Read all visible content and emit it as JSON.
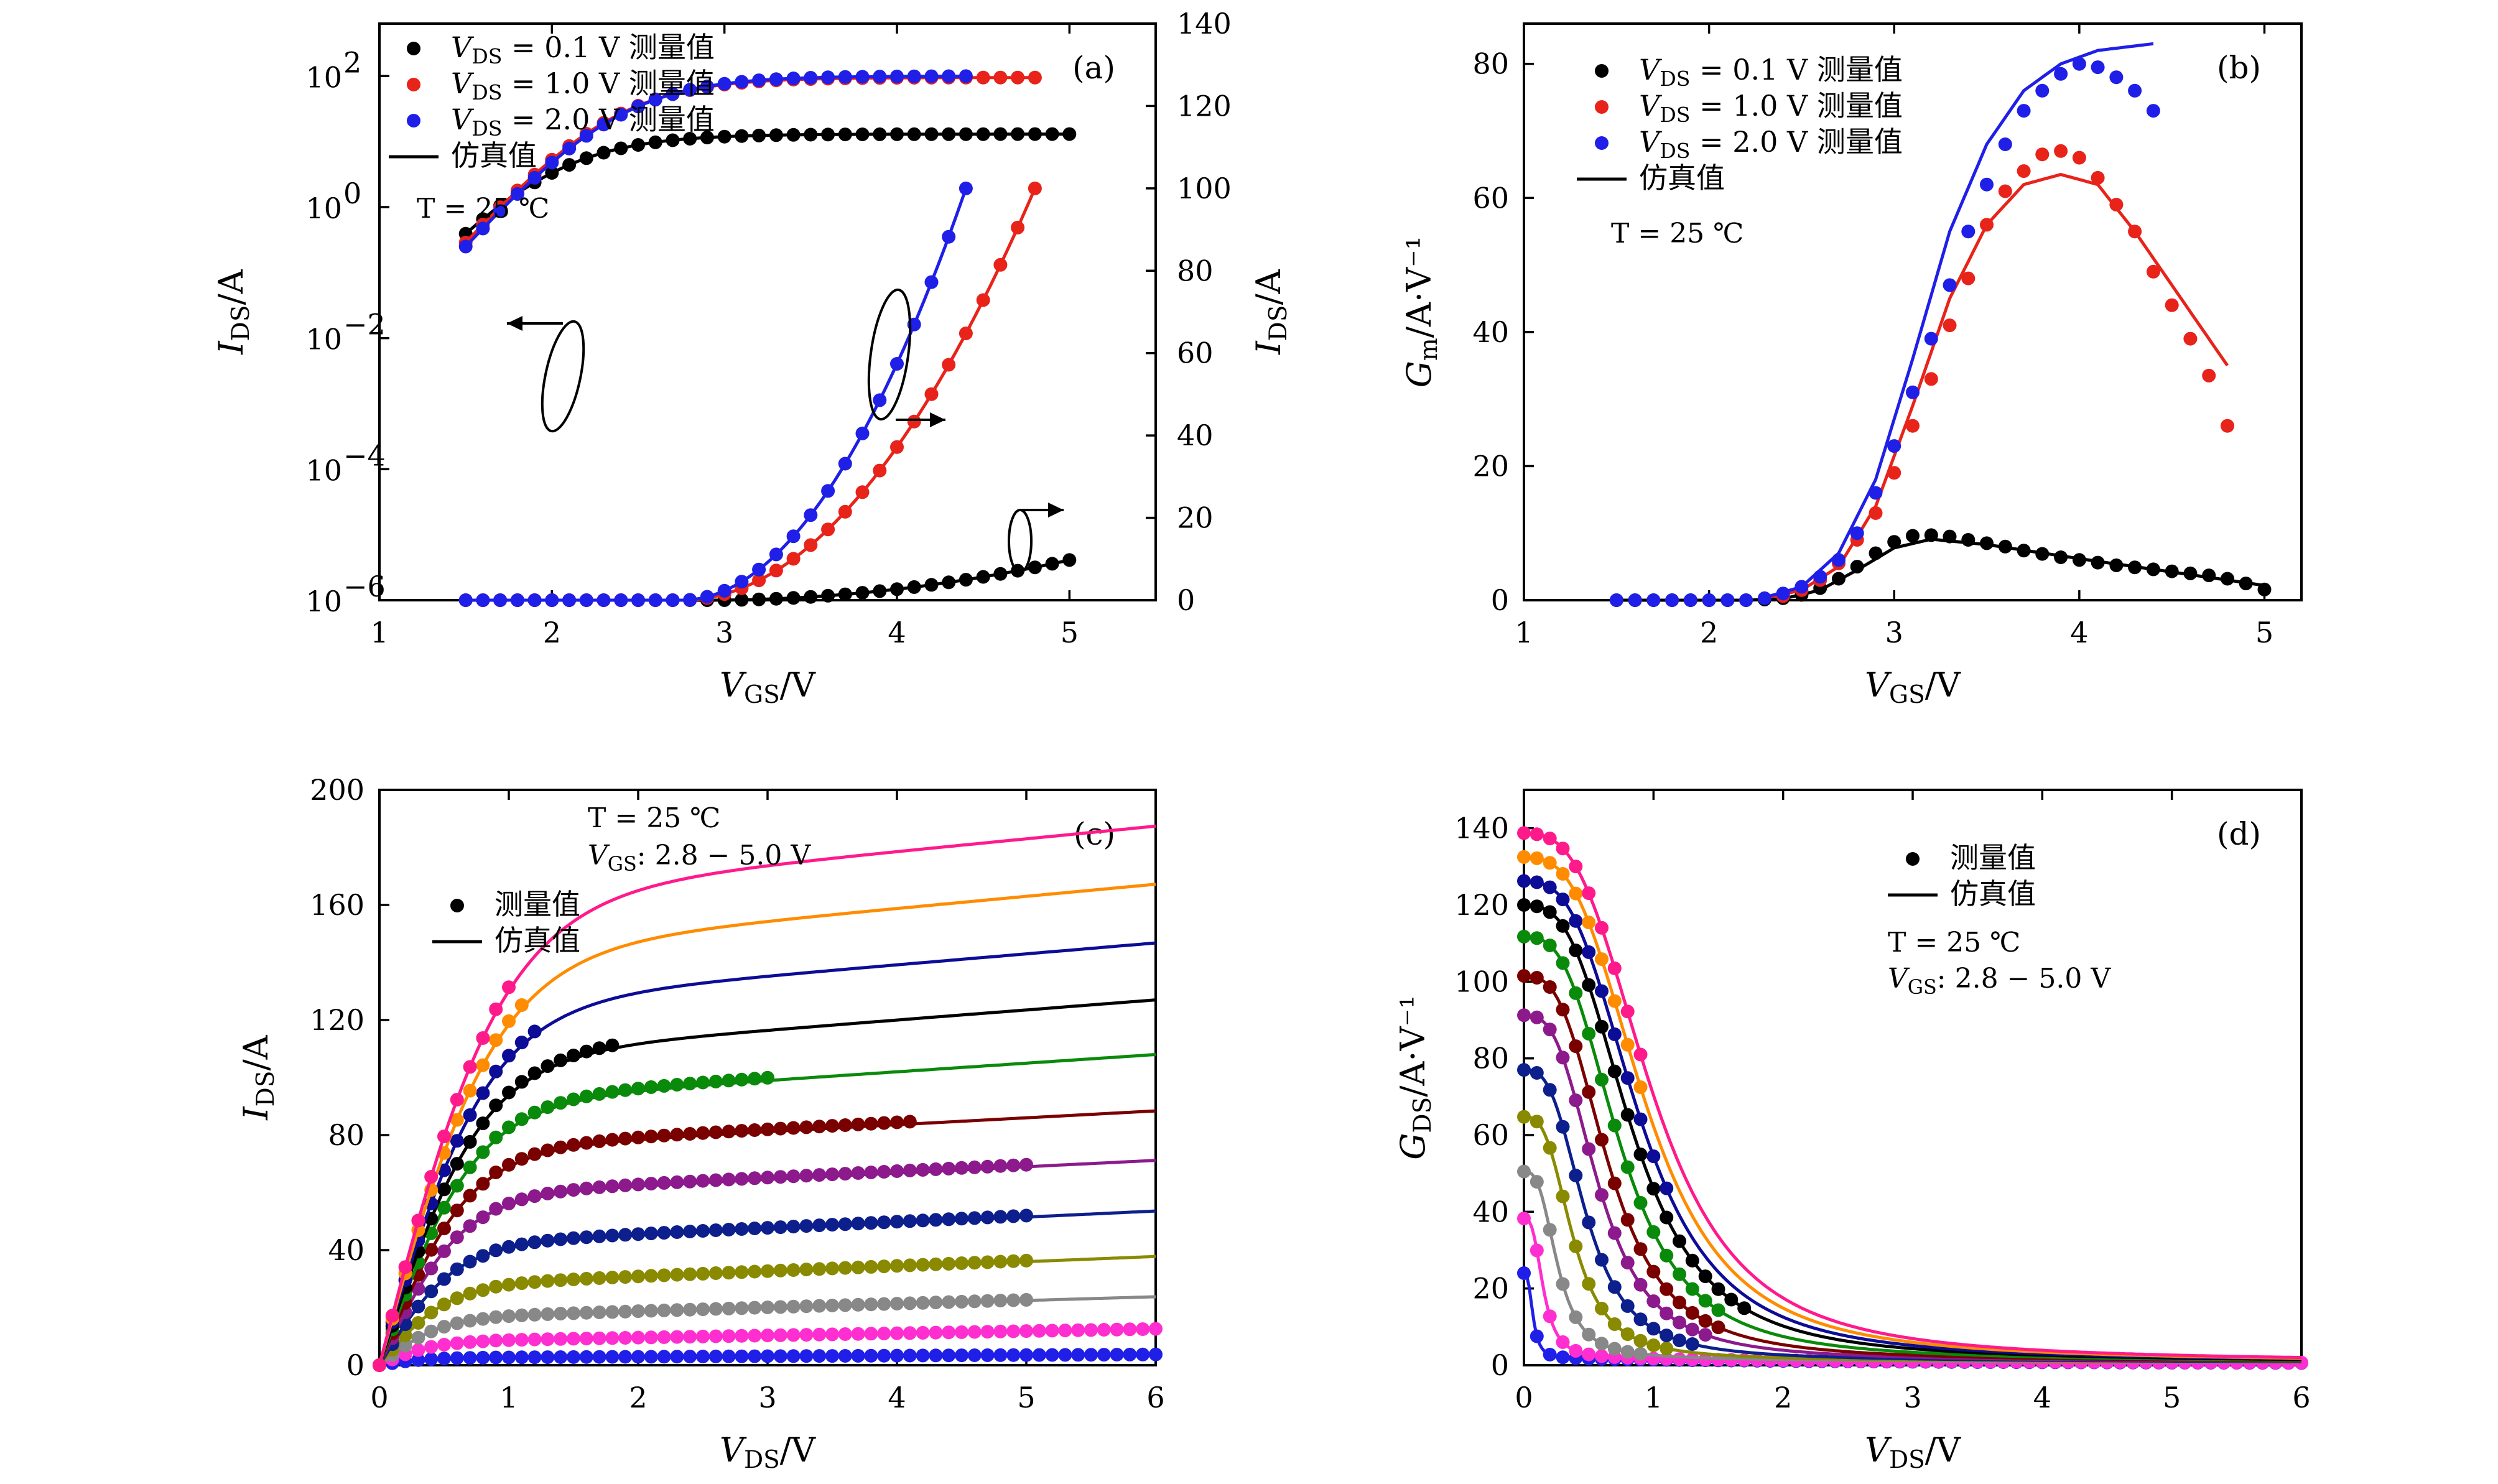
{
  "chart_data": [
    {
      "id": "a",
      "type": "scatter",
      "panel_label": "(a)",
      "xlabel": "V_GS/V",
      "ylabel": "I_DS/A",
      "y2label": "I_DS/A",
      "xlim": [
        1,
        5.5
      ],
      "x_ticks": [
        "1",
        "2",
        "3",
        "4",
        "5"
      ],
      "ylim_log": [
        -6,
        2.8
      ],
      "y_ticks_log": [
        {
          "base": "10",
          "exp": "2"
        },
        {
          "base": "10",
          "exp": "0"
        },
        {
          "base": "10",
          "exp": "−2"
        },
        {
          "base": "10",
          "exp": "−4"
        },
        {
          "base": "10",
          "exp": "−6"
        }
      ],
      "y2lim": [
        0,
        140
      ],
      "y2_ticks": [
        "0",
        "20",
        "40",
        "60",
        "80",
        "100",
        "120",
        "140"
      ],
      "annotation": {
        "text": "T = 25 ℃"
      },
      "legend": [
        {
          "text": "V_DS = 0.1 V 测量值",
          "color": "#000000",
          "marker": "dot"
        },
        {
          "text": "V_DS = 1.0 V 测量值",
          "color": "#e8231a",
          "marker": "dot"
        },
        {
          "text": "V_DS = 2.0 V 测量值",
          "color": "#1f1fe8",
          "marker": "dot"
        },
        {
          "text": "仿真值",
          "color": "#000000",
          "marker": "line"
        }
      ],
      "series": [
        {
          "name": "V_DS = 0.1 V 测量值",
          "color": "#000000",
          "vmax": 5.0,
          "log_params": {
            "vt": 1.95,
            "ss": 0.33,
            "isat": 13
          },
          "lin_params": {
            "scale": 13,
            "vt": 2.9
          }
        },
        {
          "name": "V_DS = 1.0 V 测量值",
          "color": "#e8231a",
          "vmax": 4.8,
          "log_params": {
            "vt": 2.32,
            "ss": 0.32,
            "isat": 95
          },
          "lin_params": {
            "scale": 100,
            "vt": 2.75
          }
        },
        {
          "name": "V_DS = 2.0 V 测量值",
          "color": "#1f1fe8",
          "vmax": 4.4,
          "log_params": {
            "vt": 2.35,
            "ss": 0.32,
            "isat": 100
          },
          "lin_params": {
            "scale": 100,
            "vt": 2.75
          }
        }
      ]
    },
    {
      "id": "b",
      "type": "scatter",
      "panel_label": "(b)",
      "xlabel": "V_GS/V",
      "ylabel": "G_m/A·V⁻¹",
      "xlim": [
        1,
        5.2
      ],
      "x_ticks": [
        "1",
        "2",
        "3",
        "4",
        "5"
      ],
      "ylim": [
        0,
        86
      ],
      "y_ticks": [
        "0",
        "20",
        "40",
        "60",
        "80"
      ],
      "annotation": {
        "text": "T = 25 ℃"
      },
      "legend": [
        {
          "text": "V_DS = 0.1 V 测量值",
          "color": "#000000",
          "marker": "dot"
        },
        {
          "text": "V_DS = 1.0 V 测量值",
          "color": "#e8231a",
          "marker": "dot"
        },
        {
          "text": "V_DS = 2.0 V 测量值",
          "color": "#1f1fe8",
          "marker": "dot"
        },
        {
          "text": "仿真值",
          "color": "#000000",
          "marker": "line"
        }
      ],
      "series": [
        {
          "name": "V_DS = 0.1 V 测量值",
          "color": "#000000",
          "x": [
            1.5,
            1.6,
            1.7,
            1.8,
            1.9,
            2.0,
            2.1,
            2.2,
            2.3,
            2.4,
            2.5,
            2.6,
            2.7,
            2.8,
            2.9,
            3.0,
            3.1,
            3.2,
            3.3,
            3.4,
            3.5,
            3.6,
            3.7,
            3.8,
            3.9,
            4.0,
            4.1,
            4.2,
            4.3,
            4.4,
            4.5,
            4.6,
            4.7,
            4.8,
            4.9,
            5.0
          ],
          "y": [
            0,
            0,
            0,
            0,
            0,
            0,
            0,
            0,
            0.1,
            0.3,
            0.8,
            1.8,
            3.2,
            5,
            7,
            8.7,
            9.6,
            9.7,
            9.5,
            9,
            8.5,
            8,
            7.4,
            6.9,
            6.4,
            6,
            5.6,
            5.2,
            4.9,
            4.6,
            4.3,
            4,
            3.7,
            3.2,
            2.5,
            1.6
          ],
          "fit_x": [
            1.5,
            2.2,
            2.4,
            2.6,
            2.8,
            3.0,
            3.2,
            3.5,
            4.0,
            4.5,
            5.0
          ],
          "fit_y": [
            0,
            0,
            0.2,
            1.5,
            4.5,
            7.8,
            9.1,
            8.3,
            6.2,
            4.2,
            2.2
          ]
        },
        {
          "name": "V_DS = 1.0 V 测量值",
          "color": "#e8231a",
          "x": [
            2.4,
            2.5,
            2.6,
            2.7,
            2.8,
            2.9,
            3.0,
            3.1,
            3.2,
            3.3,
            3.4,
            3.5,
            3.6,
            3.7,
            3.8,
            3.9,
            4.0,
            4.1,
            4.2,
            4.3,
            4.4,
            4.5,
            4.6,
            4.7,
            4.8
          ],
          "y": [
            0.6,
            1.5,
            3,
            5.5,
            9,
            13,
            19,
            26,
            33,
            41,
            48,
            56,
            61,
            64,
            66.5,
            67,
            66,
            63,
            59,
            55,
            49,
            44,
            39,
            33.5,
            26
          ],
          "fit_x": [
            2.3,
            2.5,
            2.7,
            2.9,
            3.1,
            3.3,
            3.5,
            3.7,
            3.9,
            4.1,
            4.3,
            4.5,
            4.8
          ],
          "fit_y": [
            0.3,
            1.5,
            5,
            14,
            29,
            45,
            56,
            62,
            63.5,
            62,
            55,
            47,
            35
          ]
        },
        {
          "name": "V_DS = 2.0 V 测量值",
          "color": "#1f1fe8",
          "x": [
            1.5,
            1.6,
            1.7,
            1.8,
            1.9,
            2.0,
            2.1,
            2.2,
            2.3,
            2.4,
            2.5,
            2.6,
            2.7,
            2.8,
            2.9,
            3.0,
            3.1,
            3.2,
            3.3,
            3.4,
            3.5,
            3.6,
            3.7,
            3.8,
            3.9,
            4.0,
            4.1,
            4.2,
            4.3,
            4.4
          ],
          "y": [
            0,
            0,
            0,
            0,
            0,
            0,
            0,
            0,
            0.3,
            1,
            2,
            3.5,
            6,
            10,
            16,
            23,
            31,
            39,
            47,
            55,
            62,
            68,
            73,
            76,
            78.5,
            80,
            79.5,
            78,
            76,
            73
          ],
          "fit_x": [
            2.3,
            2.5,
            2.7,
            2.9,
            3.1,
            3.3,
            3.5,
            3.7,
            3.9,
            4.1,
            4.4
          ],
          "fit_y": [
            0.4,
            2,
            7,
            18,
            36,
            55,
            68,
            76,
            80,
            82,
            83
          ]
        }
      ]
    },
    {
      "id": "c",
      "type": "scatter",
      "panel_label": "(c)",
      "xlabel": "V_DS/V",
      "ylabel": "I_DS/A",
      "xlim": [
        0,
        6
      ],
      "x_ticks": [
        "0",
        "1",
        "2",
        "3",
        "4",
        "5",
        "6"
      ],
      "ylim": [
        0,
        200
      ],
      "y_ticks": [
        "0",
        "40",
        "80",
        "120",
        "160",
        "200"
      ],
      "annotation": {
        "lines": [
          "T = 25 ℃",
          "V_GS: 2.8 − 5.0 V"
        ]
      },
      "legend": [
        {
          "text": "测量值",
          "color": "#000000",
          "marker": "dot"
        },
        {
          "text": "仿真值",
          "color": "#000000",
          "marker": "line"
        }
      ],
      "series": [
        {
          "color": "#1f1fe8",
          "isat": 2.5,
          "slope": 0.2,
          "meas_max": 6.0
        },
        {
          "color": "#ff2ed0",
          "isat": 8,
          "slope": 0.75,
          "meas_max": 6.0
        },
        {
          "color": "#888888",
          "isat": 16,
          "slope": 1.3,
          "meas_max": 5.0
        },
        {
          "color": "#8a8a00",
          "isat": 27,
          "slope": 1.8,
          "meas_max": 5.0
        },
        {
          "color": "#0c1f8c",
          "isat": 41,
          "slope": 2.1,
          "meas_max": 5.0
        },
        {
          "color": "#8c1a8c",
          "isat": 58,
          "slope": 2.2,
          "meas_max": 5.0
        },
        {
          "color": "#7a0000",
          "isat": 74,
          "slope": 2.4,
          "meas_max": 4.1
        },
        {
          "color": "#0a8a0a",
          "isat": 90,
          "slope": 3.0,
          "meas_max": 3.0
        },
        {
          "color": "#000000",
          "isat": 106,
          "slope": 3.5,
          "meas_max": 1.8
        },
        {
          "color": "#0c0c96",
          "isat": 124,
          "slope": 3.8,
          "meas_max": 1.2
        },
        {
          "color": "#ff8c00",
          "isat": 142,
          "slope": 4.2,
          "meas_max": 1.1
        },
        {
          "color": "#ff1a8c",
          "isat": 161,
          "slope": 4.4,
          "meas_max": 1.0
        }
      ]
    },
    {
      "id": "d",
      "type": "scatter",
      "panel_label": "(d)",
      "xlabel": "V_DS/V",
      "ylabel": "G_DS/A·V⁻¹",
      "xlim": [
        0,
        6
      ],
      "x_ticks": [
        "0",
        "1",
        "2",
        "3",
        "4",
        "5",
        "6"
      ],
      "ylim": [
        0,
        150
      ],
      "y_ticks": [
        "0",
        "20",
        "40",
        "60",
        "80",
        "100",
        "120",
        "140"
      ],
      "annotation": {
        "lines": [
          "T = 25 ℃",
          "V_GS: 2.8 − 5.0 V"
        ]
      },
      "legend": [
        {
          "text": "测量值",
          "color": "#000000",
          "marker": "dot"
        },
        {
          "text": "仿真值",
          "color": "#000000",
          "marker": "line"
        }
      ],
      "series": [
        {
          "color": "#1f1fe8",
          "g0": 22,
          "k": 0.07,
          "meas_max": 6.0
        },
        {
          "color": "#ff2ed0",
          "g0": 36,
          "k": 0.15,
          "meas_max": 6.0
        },
        {
          "color": "#888888",
          "g0": 48,
          "k": 0.26,
          "meas_max": 0.9
        },
        {
          "color": "#8a8a00",
          "g0": 62,
          "k": 0.38,
          "meas_max": 1.1
        },
        {
          "color": "#0c1f8c",
          "g0": 74,
          "k": 0.48,
          "meas_max": 1.3
        },
        {
          "color": "#8c1a8c",
          "g0": 88,
          "k": 0.58,
          "meas_max": 1.4
        },
        {
          "color": "#7a0000",
          "g0": 98,
          "k": 0.66,
          "meas_max": 1.5
        },
        {
          "color": "#0a8a0a",
          "g0": 108,
          "k": 0.75,
          "meas_max": 1.5
        },
        {
          "color": "#000000",
          "g0": 116,
          "k": 0.84,
          "meas_max": 1.7
        },
        {
          "color": "#0c0c96",
          "g0": 122,
          "k": 0.9,
          "meas_max": 1.1
        },
        {
          "color": "#ff8c00",
          "g0": 128,
          "k": 0.95,
          "meas_max": 0.9
        },
        {
          "color": "#ff1a8c",
          "g0": 134,
          "k": 1.0,
          "meas_max": 0.9
        }
      ]
    }
  ]
}
